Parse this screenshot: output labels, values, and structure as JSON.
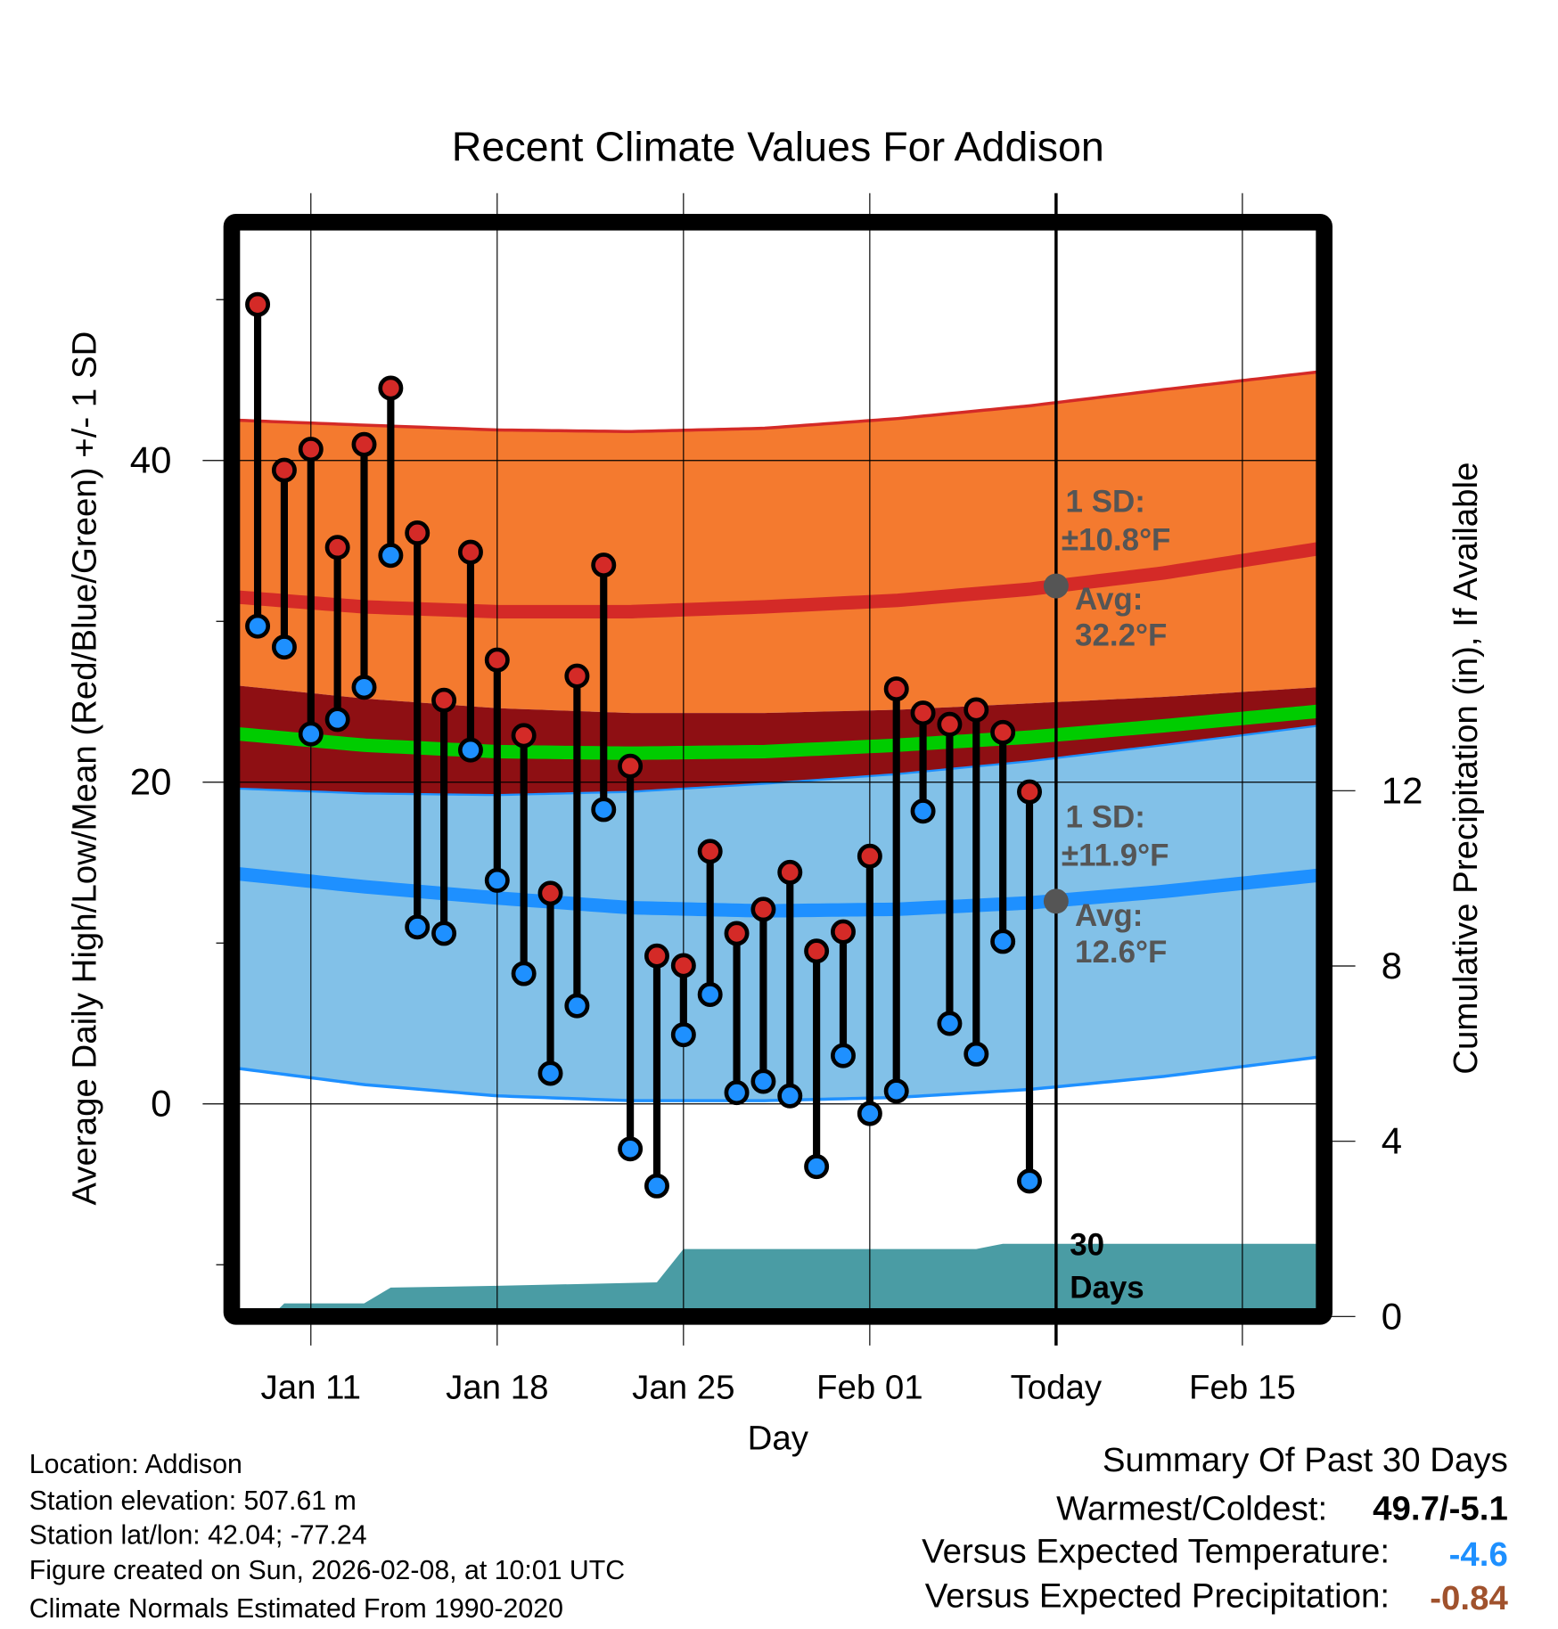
{
  "chart_data": {
    "type": "line",
    "title": "Recent Climate Values For Addison",
    "xlabel": "Day",
    "ylabel": "Average Daily High/Low/Mean (Red/Blue/Green) +/- 1 SD",
    "ylabel_right": "Cumulative Precipitation (in), If Available",
    "x_ticks": [
      "Jan 11",
      "Jan 18",
      "Jan 25",
      "Feb 01",
      "Today",
      "Feb 15"
    ],
    "x_tick_days": [
      2,
      9,
      16,
      23,
      30,
      37
    ],
    "y_ticks": [
      "0",
      "20",
      "40"
    ],
    "y_tick_values": [
      0,
      20,
      40
    ],
    "y_minor_values": [
      -10,
      10,
      30,
      50
    ],
    "y_right_ticks": [
      "0",
      "4",
      "8",
      "12"
    ],
    "y_right_values": [
      0,
      4,
      8,
      12
    ],
    "ylim": [
      -12.7,
      54.3
    ],
    "xlim_days": [
      -0.7,
      39.8
    ],
    "start_date": "Jan 09",
    "daily_high": [
      49.7,
      39.4,
      40.7,
      34.6,
      41.0,
      44.5,
      35.5,
      25.1,
      34.3,
      27.6,
      22.9,
      13.1,
      26.6,
      33.5,
      21.0,
      9.2,
      8.6,
      15.7,
      10.6,
      12.1,
      14.4,
      9.5,
      10.7,
      15.4,
      25.8,
      24.3,
      23.6,
      24.5,
      23.1,
      19.4
    ],
    "daily_low": [
      29.7,
      28.4,
      23.0,
      23.9,
      25.9,
      34.1,
      11.0,
      10.6,
      22.0,
      13.9,
      8.1,
      1.9,
      6.1,
      18.3,
      -2.8,
      -5.1,
      4.3,
      6.8,
      0.7,
      1.4,
      0.5,
      -3.9,
      3.0,
      -0.6,
      0.8,
      18.2,
      5.0,
      3.1,
      10.1,
      -4.8
    ],
    "normals": {
      "days": [
        -0.7,
        4,
        9,
        14,
        19,
        24,
        29,
        34,
        39.8
      ],
      "high_plus_sd": [
        42.5,
        42.2,
        41.9,
        41.8,
        42.0,
        42.6,
        43.4,
        44.4,
        45.5
      ],
      "avg_high": [
        31.5,
        30.9,
        30.6,
        30.6,
        30.9,
        31.3,
        32.0,
        33.0,
        34.5
      ],
      "high_minus_sd": [
        26.0,
        25.2,
        24.6,
        24.3,
        24.3,
        24.5,
        24.9,
        25.3,
        25.9
      ],
      "avg_mean": [
        23.0,
        22.3,
        21.9,
        21.8,
        21.9,
        22.3,
        22.8,
        23.5,
        24.4
      ],
      "low_plus_sd": [
        19.6,
        19.3,
        19.2,
        19.4,
        19.9,
        20.5,
        21.3,
        22.3,
        23.5
      ],
      "avg_low": [
        14.3,
        13.5,
        12.8,
        12.2,
        12.0,
        12.1,
        12.5,
        13.2,
        14.2
      ],
      "low_minus_sd": [
        2.2,
        1.2,
        0.5,
        0.2,
        0.2,
        0.4,
        0.9,
        1.7,
        2.9
      ]
    },
    "precip_cumulative": {
      "days": [
        -0.7,
        0.5,
        1.0,
        4.0,
        5.0,
        9.0,
        15.0,
        16.0,
        17.0,
        27.0,
        28.0,
        39.8
      ],
      "values": [
        0,
        0,
        0.3,
        0.3,
        0.66,
        0.7,
        0.78,
        1.54,
        1.54,
        1.54,
        1.66,
        1.66
      ]
    },
    "annotations": {
      "high_sd_1": "1 SD:",
      "high_sd_2": "±10.8°F",
      "high_avg_1": "Avg:",
      "high_avg_2": "32.2°F",
      "low_sd_1": "1 SD:",
      "low_sd_2": "±11.9°F",
      "low_avg_1": "Avg:",
      "low_avg_2": "12.6°F",
      "days_1": "30",
      "days_2": "Days"
    },
    "today_values": {
      "avg_high": 32.2,
      "avg_low": 12.6
    },
    "colors": {
      "orange": "#f47a2f",
      "dark_red": "#8e0f13",
      "red_line": "#d42a27",
      "green": "#00cc00",
      "light_blue": "#82c1e8",
      "blue_line": "#1e90ff",
      "precip": "#4a9ca4",
      "high_dot": "#d42a27",
      "low_dot": "#1e90ff"
    }
  },
  "info": {
    "location": "Location: Addison",
    "elevation": "Station elevation: 507.61 m",
    "latlon": "Station lat/lon: 42.04; -77.24",
    "created": "Figure created on Sun, 2026-02-08, at 10:01 UTC",
    "normals": "Climate Normals Estimated From 1990-2020"
  },
  "summary": {
    "title": "Summary Of Past 30 Days",
    "warm_cold_label": "Warmest/Coldest:",
    "warm_cold_value": "49.7/-5.1",
    "temp_label": "Versus Expected Temperature:",
    "temp_value": "-4.6",
    "precip_label": "Versus Expected Precipitation:",
    "precip_value": "-0.84"
  }
}
